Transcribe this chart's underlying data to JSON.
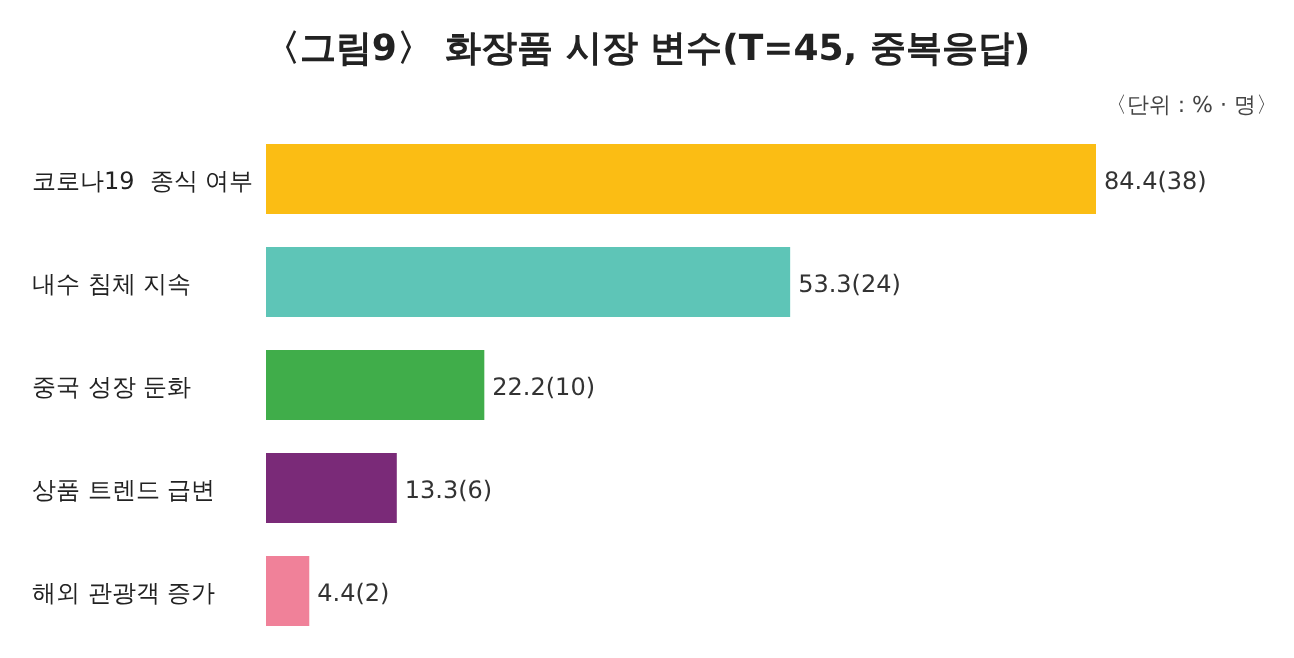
{
  "chart_data": {
    "type": "bar",
    "orientation": "horizontal",
    "title": "〈그림9〉 화장품 시장 변수(T=45, 중복응답)",
    "annotations": [
      "〈단위 : % · 명〉"
    ],
    "categories": [
      "코로나19  종식 여부",
      "내수 침체 지속",
      "중국 성장 둔화",
      "상품 트렌드 급변",
      "해외 관광객 증가"
    ],
    "values": [
      84.4,
      53.3,
      22.2,
      13.3,
      4.4
    ],
    "colors": [
      "#fbbd14",
      "#5ec5b7",
      "#40ad4a",
      "#7a2a78",
      "#f08199"
    ],
    "value_labels": [
      "84.4(38)",
      "53.3(24)",
      "22.2(10)",
      "13.3(6)",
      "4.4(2)"
    ]
  }
}
